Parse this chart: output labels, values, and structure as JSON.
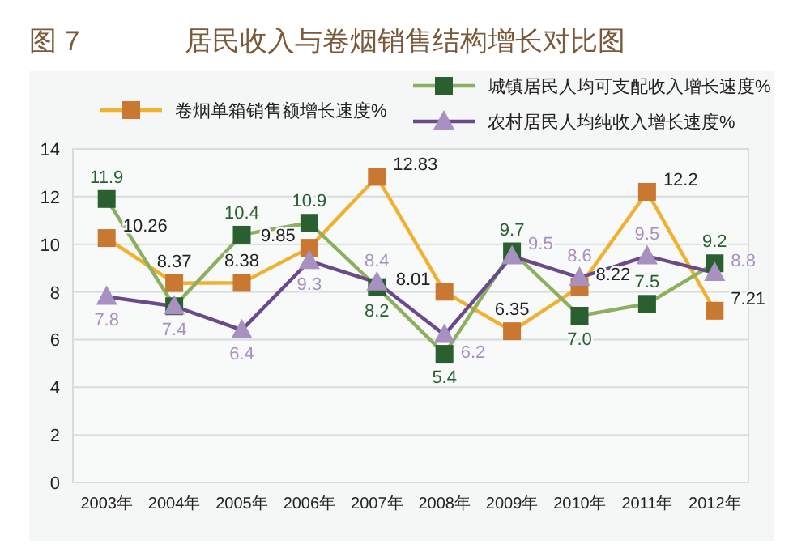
{
  "chart_data": {
    "type": "line",
    "title": "图 7",
    "subtitle": "居民收入与卷烟销售结构增长对比图",
    "categories": [
      "2003年",
      "2004年",
      "2005年",
      "2006年",
      "2007年",
      "2008年",
      "2009年",
      "2010年",
      "2011年",
      "2012年"
    ],
    "series": [
      {
        "name": "卷烟单箱销售额增长速度%",
        "color": "#f0b030",
        "colors": [
          "#c87830",
          "#c87830",
          "#c87830",
          "#c87830",
          "#c87830",
          "#c87830",
          "#c87830",
          "#c87830",
          "#c87830",
          "#c87830"
        ],
        "values": [
          10.26,
          8.37,
          8.38,
          9.85,
          12.83,
          8.01,
          6.35,
          8.22,
          12.2,
          7.21
        ],
        "value_labels": [
          "10.26",
          "8.37",
          "8.38",
          "9.85",
          "12.83",
          "8.01",
          "6.35",
          "8.22",
          "12.2",
          "7.21"
        ],
        "marker": "square"
      },
      {
        "name": "城镇居民人均可支配收入增长速度%",
        "color": "#8cb060",
        "colors": [
          "#2a6030",
          "#2a6030",
          "#2a6030",
          "#2a6030",
          "#2a6030",
          "#2a6030",
          "#2a6030",
          "#2a6030",
          "#2a6030",
          "#2a6030"
        ],
        "values": [
          11.9,
          7.4,
          10.4,
          10.9,
          8.2,
          5.4,
          9.7,
          7.0,
          7.5,
          9.2
        ],
        "value_labels": [
          "11.9",
          null,
          "10.4",
          "10.9",
          "8.2",
          "5.4",
          "9.7",
          "7.0",
          "7.5",
          "9.2"
        ],
        "marker": "square"
      },
      {
        "name": "农村居民人均纯收入增长速度%",
        "color": "#6a4a8a",
        "colors": [
          "#a890c0",
          "#a890c0",
          "#a890c0",
          "#a890c0",
          "#a890c0",
          "#a890c0",
          "#a890c0",
          "#a890c0",
          "#a890c0",
          "#a890c0"
        ],
        "values": [
          7.8,
          7.4,
          6.4,
          9.3,
          8.4,
          6.2,
          9.5,
          8.6,
          9.5,
          8.8
        ],
        "value_labels": [
          "7.8",
          "7.4",
          "6.4",
          "9.3",
          "8.4",
          "6.2",
          "9.5",
          "8.6",
          "9.5",
          "8.8"
        ],
        "marker": "triangle"
      }
    ],
    "ylim": [
      0,
      14
    ],
    "yticks": [
      0,
      2,
      4,
      6,
      8,
      10,
      12,
      14
    ],
    "grid": "y",
    "legend": "top right",
    "line_style": "solid"
  }
}
